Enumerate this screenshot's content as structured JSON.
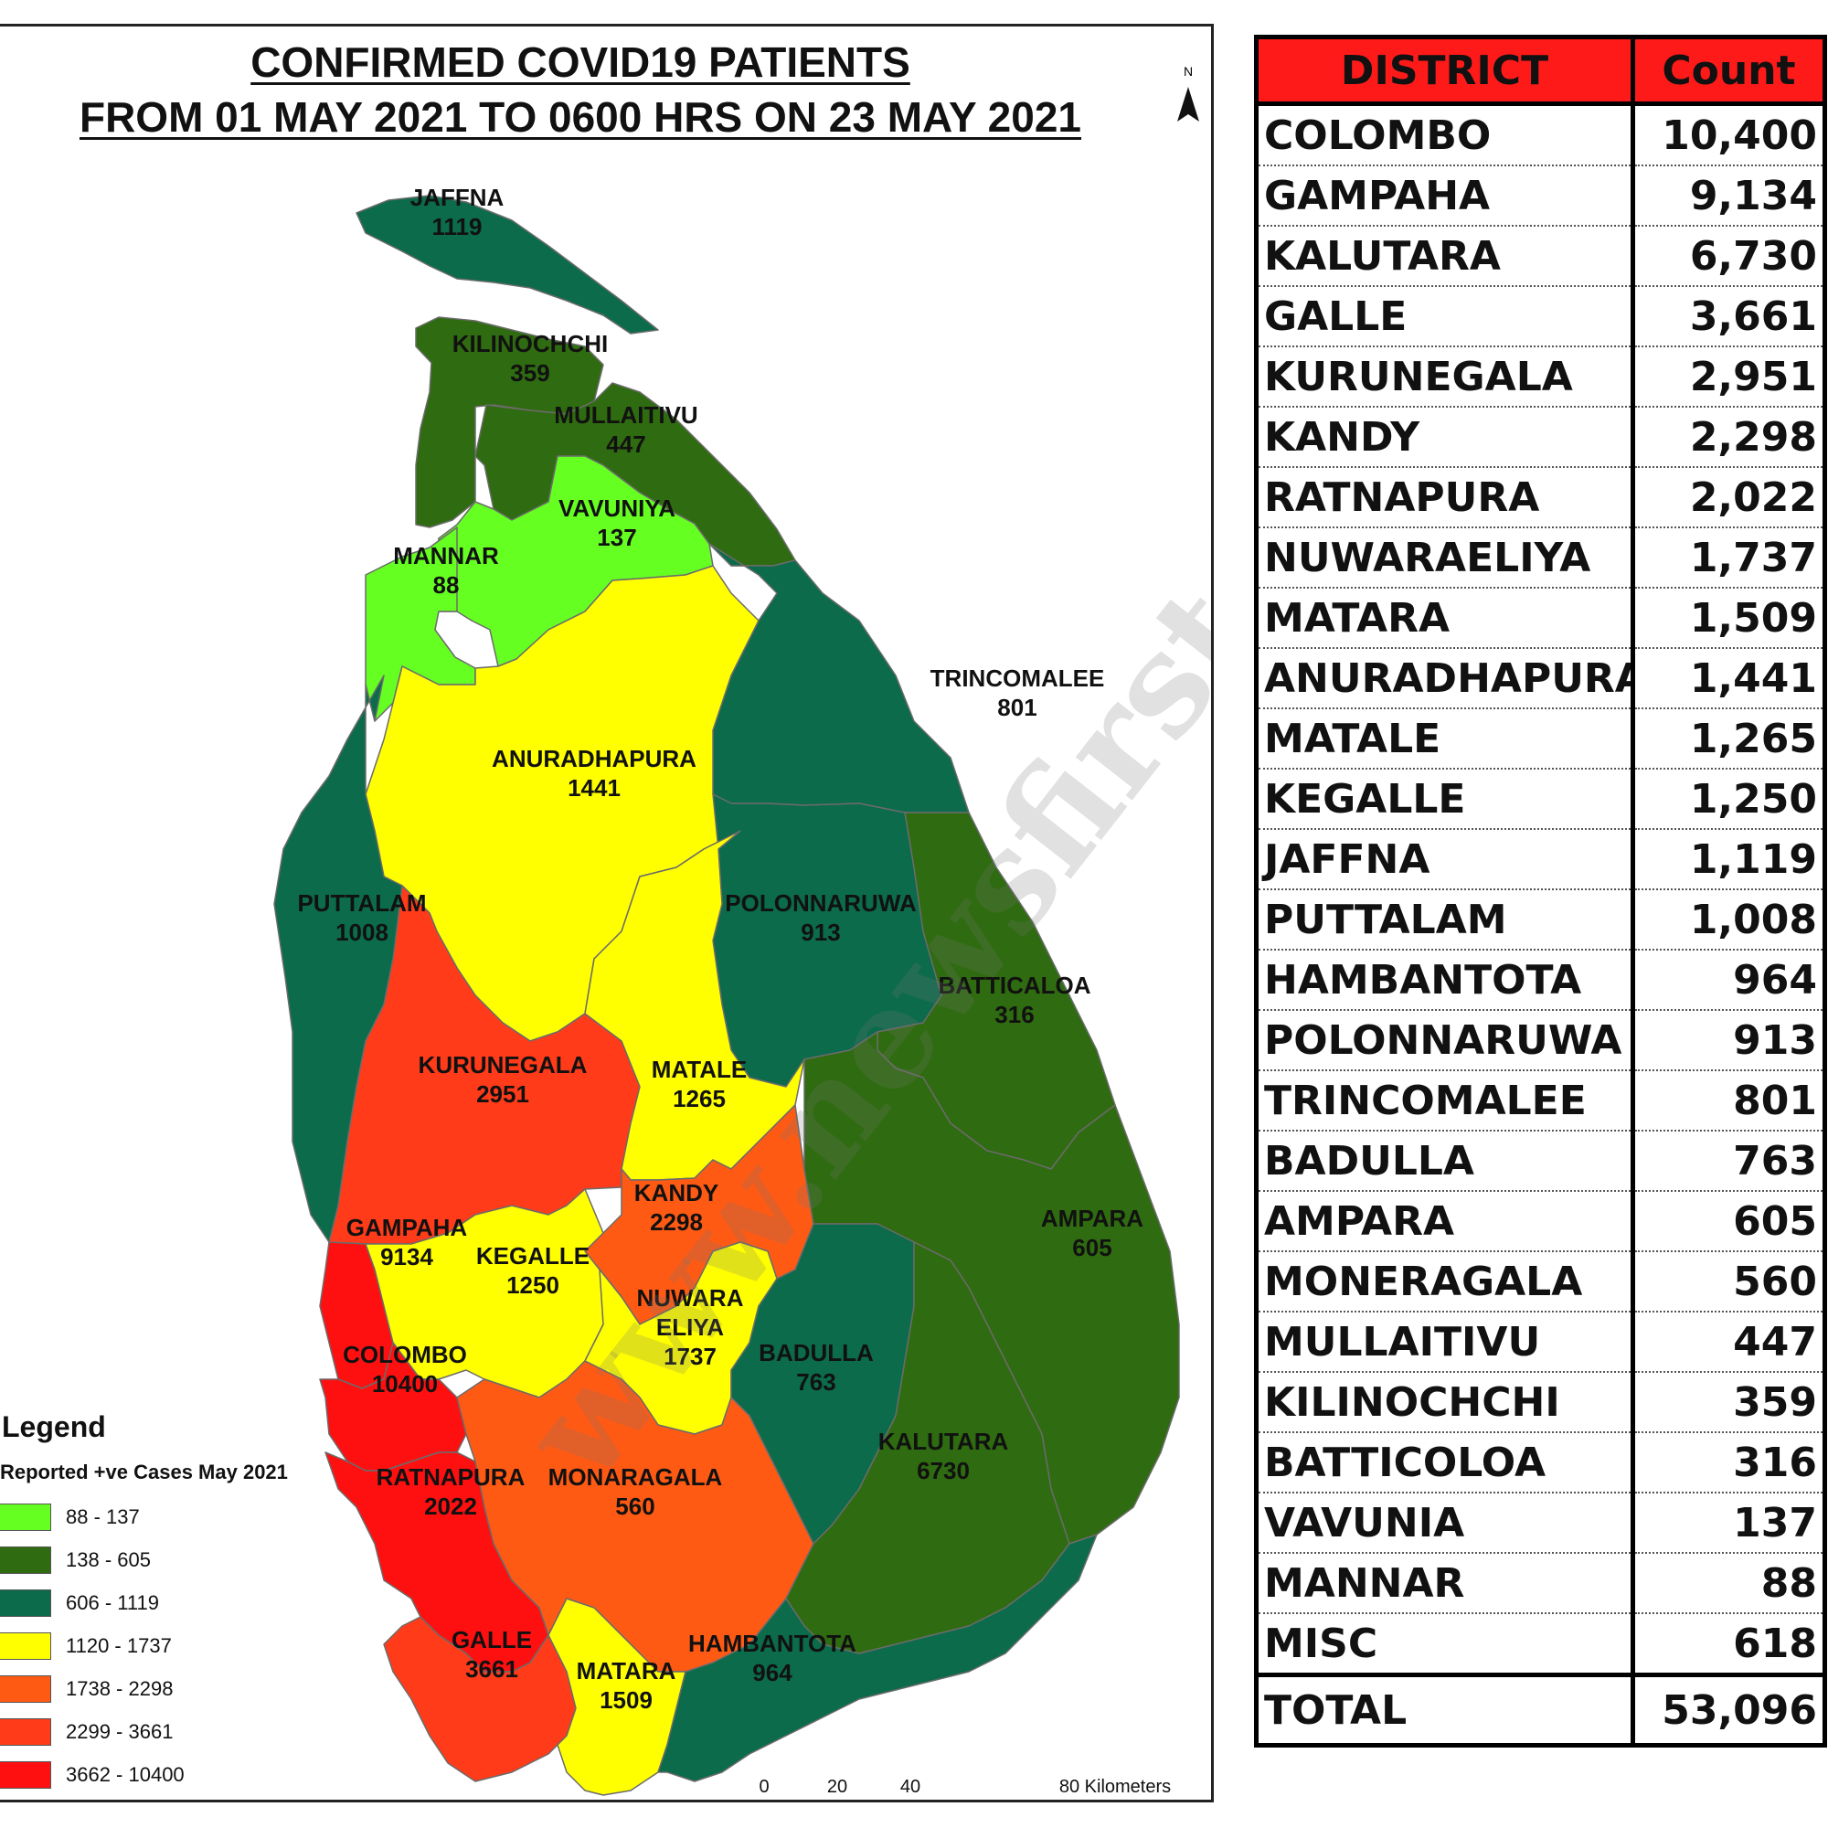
{
  "map": {
    "title_line1": "CONFIRMED COVID19 PATIENTS",
    "title_line2": "FROM 01 MAY 2021 TO 0600 HRS ON 23 MAY 2021",
    "north_label": "N",
    "watermark": "www.newsfirst.lk",
    "districts": [
      {
        "name": "JAFFNA",
        "count": "1119",
        "color": "#0b6b4a"
      },
      {
        "name": "KILINOCHCHI",
        "count": "359",
        "color": "#2f6b10"
      },
      {
        "name": "MULLAITIVU",
        "count": "447",
        "color": "#2f6b10"
      },
      {
        "name": "VAVUNIYA",
        "count": "137",
        "color": "#66ff22"
      },
      {
        "name": "MANNAR",
        "count": "88",
        "color": "#66ff22"
      },
      {
        "name": "TRINCOMALEE",
        "count": "801",
        "color": "#0b6b4a"
      },
      {
        "name": "ANURADHAPURA",
        "count": "1441",
        "color": "#ffff00"
      },
      {
        "name": "PUTTALAM",
        "count": "1008",
        "color": "#0b6b4a"
      },
      {
        "name": "POLONNARUWA",
        "count": "913",
        "color": "#0b6b4a"
      },
      {
        "name": "BATTICALOA",
        "count": "316",
        "color": "#2f6b10"
      },
      {
        "name": "KURUNEGALA",
        "count": "2951",
        "color": "#ff3b1a"
      },
      {
        "name": "MATALE",
        "count": "1265",
        "color": "#ffff00"
      },
      {
        "name": "KANDY",
        "count": "2298",
        "color": "#ff5a14"
      },
      {
        "name": "AMPARA",
        "count": "605",
        "color": "#2f6b10"
      },
      {
        "name": "GAMPAHA",
        "count": "9134",
        "color": "#ff1010"
      },
      {
        "name": "KEGALLE",
        "count": "1250",
        "color": "#ffff00"
      },
      {
        "name": "NUWARA",
        "name2": "ELIYA",
        "count": "1737",
        "color": "#ffff00"
      },
      {
        "name": "BADULLA",
        "count": "763",
        "color": "#0b6b4a"
      },
      {
        "name": "COLOMBO",
        "count": "10400",
        "color": "#ff1010"
      },
      {
        "name": "KALUTARA",
        "count": "6730",
        "color": "#ff1010"
      },
      {
        "name": "RATNAPURA",
        "count": "2022",
        "color": "#ff5a14"
      },
      {
        "name": "MONARAGALA",
        "count": "560",
        "color": "#2f6b10"
      },
      {
        "name": "GALLE",
        "count": "3661",
        "color": "#ff3b1a"
      },
      {
        "name": "MATARA",
        "count": "1509",
        "color": "#ffff00"
      },
      {
        "name": "HAMBANTOTA",
        "count": "964",
        "color": "#0b6b4a"
      }
    ],
    "legend": {
      "title": "Legend",
      "subtitle": "Reported +ve Cases May 2021",
      "items": [
        {
          "label": "88 - 137",
          "color": "#66ff22"
        },
        {
          "label": "138 - 605",
          "color": "#2f6b10"
        },
        {
          "label": "606 - 1119",
          "color": "#0b6b4a"
        },
        {
          "label": "1120 - 1737",
          "color": "#ffff00"
        },
        {
          "label": "1738 - 2298",
          "color": "#ff5a14"
        },
        {
          "label": "2299 - 3661",
          "color": "#ff3b1a"
        },
        {
          "label": "3662 - 10400",
          "color": "#ff1010"
        }
      ]
    },
    "scale": {
      "ticks": [
        "0",
        "20",
        "40",
        "80 Kilometers"
      ]
    }
  },
  "table": {
    "headers": [
      "DISTRICT",
      "Count"
    ],
    "rows": [
      {
        "district": "COLOMBO",
        "count": "10,400"
      },
      {
        "district": "GAMPAHA",
        "count": "9,134"
      },
      {
        "district": "KALUTARA",
        "count": "6,730"
      },
      {
        "district": "GALLE",
        "count": "3,661"
      },
      {
        "district": "KURUNEGALA",
        "count": "2,951"
      },
      {
        "district": "KANDY",
        "count": "2,298"
      },
      {
        "district": "RATNAPURA",
        "count": "2,022"
      },
      {
        "district": "NUWARAELIYA",
        "count": "1,737"
      },
      {
        "district": "MATARA",
        "count": "1,509"
      },
      {
        "district": "ANURADHAPURA",
        "count": "1,441"
      },
      {
        "district": "MATALE",
        "count": "1,265"
      },
      {
        "district": "KEGALLE",
        "count": "1,250"
      },
      {
        "district": "JAFFNA",
        "count": "1,119"
      },
      {
        "district": "PUTTALAM",
        "count": "1,008"
      },
      {
        "district": "HAMBANTOTA",
        "count": "964"
      },
      {
        "district": "POLONNARUWA",
        "count": "913"
      },
      {
        "district": "TRINCOMALEE",
        "count": "801"
      },
      {
        "district": "BADULLA",
        "count": "763"
      },
      {
        "district": "AMPARA",
        "count": "605"
      },
      {
        "district": "MONERAGALA",
        "count": "560"
      },
      {
        "district": "MULLAITIVU",
        "count": "447"
      },
      {
        "district": "KILINOCHCHI",
        "count": "359"
      },
      {
        "district": "BATTICOLOA",
        "count": "316"
      },
      {
        "district": "VAVUNIA",
        "count": "137"
      },
      {
        "district": "MANNAR",
        "count": "88"
      },
      {
        "district": "MISC",
        "count": "618"
      }
    ],
    "total": {
      "district": "TOTAL",
      "count": "53,096"
    }
  }
}
